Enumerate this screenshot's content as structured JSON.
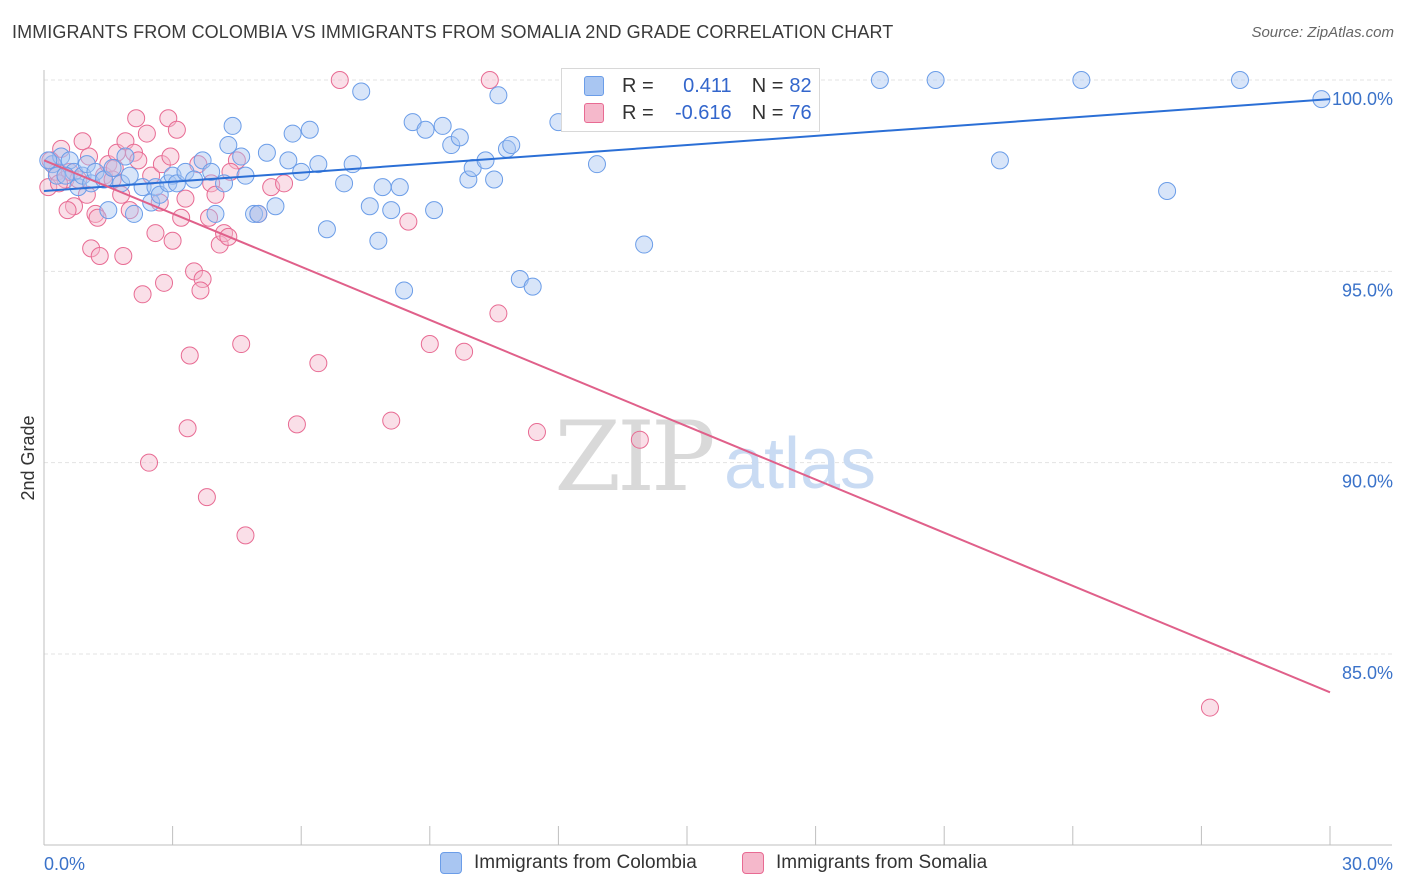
{
  "header": {
    "title": "IMMIGRANTS FROM COLOMBIA VS IMMIGRANTS FROM SOMALIA 2ND GRADE CORRELATION CHART",
    "source": "Source: ZipAtlas.com"
  },
  "watermark": {
    "zip": "ZIP",
    "atlas": "atlas"
  },
  "legend": {
    "r_label": "R =",
    "n_label": "N =",
    "rows": [
      {
        "name": "Immigrants from Colombia",
        "r": "0.411",
        "n": "82",
        "color": "#6b9de8",
        "fill": "#a9c6f2"
      },
      {
        "name": "Immigrants from Somalia",
        "r": "-0.616",
        "n": "76",
        "color": "#e86b93",
        "fill": "#f5b8cb"
      }
    ]
  },
  "chart_data": {
    "type": "scatter",
    "title": "IMMIGRANTS FROM COLOMBIA VS IMMIGRANTS FROM SOMALIA 2ND GRADE CORRELATION CHART",
    "xlabel": "",
    "ylabel": "2nd Grade",
    "xlim": [
      0,
      30
    ],
    "ylim": [
      80.5,
      100.8
    ],
    "x_tick_labels": [
      "0.0%",
      "30.0%"
    ],
    "y_ticks": [
      {
        "value": 100,
        "label": "100.0%"
      },
      {
        "value": 95,
        "label": "95.0%"
      },
      {
        "value": 90,
        "label": "90.0%"
      },
      {
        "value": 85,
        "label": "85.0%"
      }
    ],
    "grid": true,
    "series": [
      {
        "name": "Immigrants from Colombia",
        "color": "#6b9de8",
        "trend": {
          "x": [
            0,
            30
          ],
          "y": [
            97.1,
            99.5
          ]
        },
        "points": [
          [
            0.2,
            97.8
          ],
          [
            0.3,
            97.5
          ],
          [
            0.4,
            98.0
          ],
          [
            0.6,
            97.9
          ],
          [
            0.7,
            97.6
          ],
          [
            0.8,
            97.2
          ],
          [
            0.9,
            97.5
          ],
          [
            1.0,
            97.8
          ],
          [
            1.1,
            97.3
          ],
          [
            1.2,
            97.6
          ],
          [
            1.4,
            97.4
          ],
          [
            1.5,
            96.6
          ],
          [
            1.6,
            97.7
          ],
          [
            1.8,
            97.3
          ],
          [
            1.9,
            98.0
          ],
          [
            2.0,
            97.5
          ],
          [
            2.1,
            96.5
          ],
          [
            2.3,
            97.2
          ],
          [
            2.5,
            96.8
          ],
          [
            2.6,
            97.2
          ],
          [
            2.7,
            97.0
          ],
          [
            2.9,
            97.3
          ],
          [
            3.0,
            97.5
          ],
          [
            3.1,
            97.3
          ],
          [
            3.3,
            97.6
          ],
          [
            3.5,
            97.4
          ],
          [
            3.7,
            97.9
          ],
          [
            3.9,
            97.6
          ],
          [
            4.0,
            96.5
          ],
          [
            4.2,
            97.3
          ],
          [
            4.3,
            98.3
          ],
          [
            4.4,
            98.8
          ],
          [
            4.6,
            98.0
          ],
          [
            4.7,
            97.5
          ],
          [
            4.9,
            96.5
          ],
          [
            5.0,
            96.5
          ],
          [
            5.2,
            98.1
          ],
          [
            5.4,
            96.7
          ],
          [
            5.7,
            97.9
          ],
          [
            5.8,
            98.6
          ],
          [
            6.0,
            97.6
          ],
          [
            6.2,
            98.7
          ],
          [
            6.4,
            97.8
          ],
          [
            6.6,
            96.1
          ],
          [
            7.0,
            97.3
          ],
          [
            7.2,
            97.8
          ],
          [
            7.4,
            99.7
          ],
          [
            7.6,
            96.7
          ],
          [
            7.8,
            95.8
          ],
          [
            7.9,
            97.2
          ],
          [
            8.1,
            96.6
          ],
          [
            8.3,
            97.2
          ],
          [
            8.4,
            94.5
          ],
          [
            8.6,
            98.9
          ],
          [
            8.9,
            98.7
          ],
          [
            9.1,
            96.6
          ],
          [
            9.3,
            98.8
          ],
          [
            9.5,
            98.3
          ],
          [
            9.7,
            98.5
          ],
          [
            9.9,
            97.4
          ],
          [
            10.0,
            97.7
          ],
          [
            10.3,
            97.9
          ],
          [
            10.5,
            97.4
          ],
          [
            10.6,
            99.6
          ],
          [
            10.8,
            98.2
          ],
          [
            10.9,
            98.3
          ],
          [
            11.1,
            94.8
          ],
          [
            11.4,
            94.6
          ],
          [
            12.0,
            98.9
          ],
          [
            12.6,
            100.0
          ],
          [
            12.9,
            97.8
          ],
          [
            14.0,
            95.7
          ],
          [
            17.8,
            99.3
          ],
          [
            19.5,
            100.0
          ],
          [
            20.8,
            100.0
          ],
          [
            22.3,
            97.9
          ],
          [
            24.2,
            100.0
          ],
          [
            26.2,
            97.1
          ],
          [
            27.9,
            100.0
          ],
          [
            29.8,
            99.5
          ],
          [
            0.1,
            97.9
          ],
          [
            0.5,
            97.5
          ]
        ]
      },
      {
        "name": "Immigrants from Somalia",
        "color": "#e86b93",
        "trend": {
          "x": [
            0,
            30
          ],
          "y": [
            97.9,
            84.0
          ]
        },
        "points": [
          [
            0.1,
            97.2
          ],
          [
            0.2,
            97.8
          ],
          [
            0.3,
            97.6
          ],
          [
            0.4,
            98.2
          ],
          [
            0.5,
            97.4
          ],
          [
            0.6,
            97.6
          ],
          [
            0.7,
            96.7
          ],
          [
            0.8,
            97.4
          ],
          [
            0.9,
            98.4
          ],
          [
            1.0,
            97.0
          ],
          [
            1.1,
            95.6
          ],
          [
            1.2,
            96.5
          ],
          [
            1.3,
            95.4
          ],
          [
            1.4,
            97.5
          ],
          [
            1.5,
            97.8
          ],
          [
            1.6,
            97.4
          ],
          [
            1.7,
            98.1
          ],
          [
            1.8,
            97.0
          ],
          [
            1.9,
            98.4
          ],
          [
            2.0,
            96.6
          ],
          [
            2.1,
            98.1
          ],
          [
            2.2,
            97.9
          ],
          [
            2.3,
            94.4
          ],
          [
            2.4,
            98.6
          ],
          [
            2.5,
            97.5
          ],
          [
            2.6,
            96.0
          ],
          [
            2.7,
            96.8
          ],
          [
            2.8,
            94.7
          ],
          [
            2.9,
            99.0
          ],
          [
            3.0,
            95.8
          ],
          [
            3.1,
            98.7
          ],
          [
            3.2,
            96.4
          ],
          [
            3.3,
            96.9
          ],
          [
            3.4,
            92.8
          ],
          [
            3.5,
            95.0
          ],
          [
            3.6,
            97.8
          ],
          [
            3.7,
            94.8
          ],
          [
            3.8,
            89.1
          ],
          [
            3.9,
            97.3
          ],
          [
            4.0,
            97.0
          ],
          [
            4.1,
            95.7
          ],
          [
            4.2,
            96.0
          ],
          [
            4.3,
            95.9
          ],
          [
            4.5,
            97.9
          ],
          [
            4.6,
            93.1
          ],
          [
            4.7,
            88.1
          ],
          [
            5.0,
            96.5
          ],
          [
            5.3,
            97.2
          ],
          [
            5.6,
            97.3
          ],
          [
            5.9,
            91.0
          ],
          [
            6.4,
            92.6
          ],
          [
            6.9,
            100.0
          ],
          [
            8.1,
            91.1
          ],
          [
            8.5,
            96.3
          ],
          [
            9.0,
            93.1
          ],
          [
            9.8,
            92.9
          ],
          [
            10.4,
            100.0
          ],
          [
            10.6,
            93.9
          ],
          [
            11.5,
            90.8
          ],
          [
            13.9,
            90.6
          ],
          [
            27.2,
            83.6
          ],
          [
            0.15,
            97.9
          ],
          [
            0.35,
            97.3
          ],
          [
            1.25,
            96.4
          ],
          [
            2.45,
            90.0
          ],
          [
            2.75,
            97.8
          ],
          [
            3.35,
            90.9
          ],
          [
            3.85,
            96.4
          ],
          [
            1.85,
            95.4
          ],
          [
            0.55,
            96.6
          ],
          [
            1.05,
            98.0
          ],
          [
            1.65,
            97.7
          ],
          [
            2.15,
            99.0
          ],
          [
            2.95,
            98.0
          ],
          [
            3.65,
            94.5
          ],
          [
            4.35,
            97.6
          ]
        ]
      }
    ]
  },
  "axes": {
    "x_min_label": "0.0%",
    "x_max_label": "30.0%",
    "y_label": "2nd Grade"
  }
}
